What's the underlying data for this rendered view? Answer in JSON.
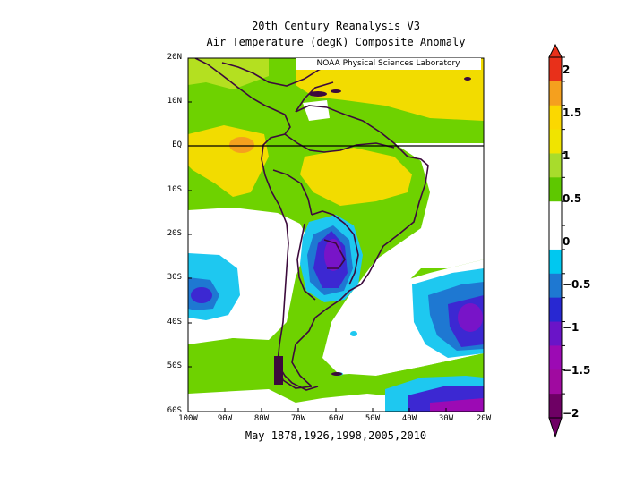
{
  "title": {
    "line1": "20th Century Reanalysis V3",
    "line2": "Air Temperature (degK) Composite Anomaly"
  },
  "credit": "NOAA Physical Sciences Laboratory",
  "footer": "May 1878,1926,1998,2005,2010",
  "map": {
    "lon_range": [
      -100,
      -20
    ],
    "lat_range": [
      -60,
      20
    ],
    "lat_ticks": [
      "20N",
      "10N",
      "EQ",
      "10S",
      "20S",
      "30S",
      "40S",
      "50S",
      "60S"
    ],
    "lon_ticks": [
      "100W",
      "90W",
      "80W",
      "70W",
      "60W",
      "50W",
      "40W",
      "30W",
      "20W"
    ],
    "equator_line": true
  },
  "colorbar": {
    "labels": [
      "2",
      "1.5",
      "1",
      "0.5",
      "0",
      "−0.5",
      "−1",
      "−1.5",
      "−2"
    ],
    "colors": [
      "#e8301a",
      "#f5a01e",
      "#fbd800",
      "#f0e400",
      "#a8dc2c",
      "#5ec800",
      "#ffffff",
      "#ffffff",
      "#00c8f0",
      "#1e78d2",
      "#2828d2",
      "#6a14c8",
      "#9c0ab4",
      "#a00aa0",
      "#6e0064"
    ]
  },
  "colors": {
    "yellow": "#f2dc00",
    "light_yellow": "#fae600",
    "orange": "#f5a01e",
    "green": "#6ed200",
    "light_green": "#9bdc2c",
    "cyan": "#1ec8f0",
    "blue": "#1e78d2",
    "indigo": "#3c28d2",
    "purple": "#7814c8",
    "coast": "#3c0a3c"
  }
}
